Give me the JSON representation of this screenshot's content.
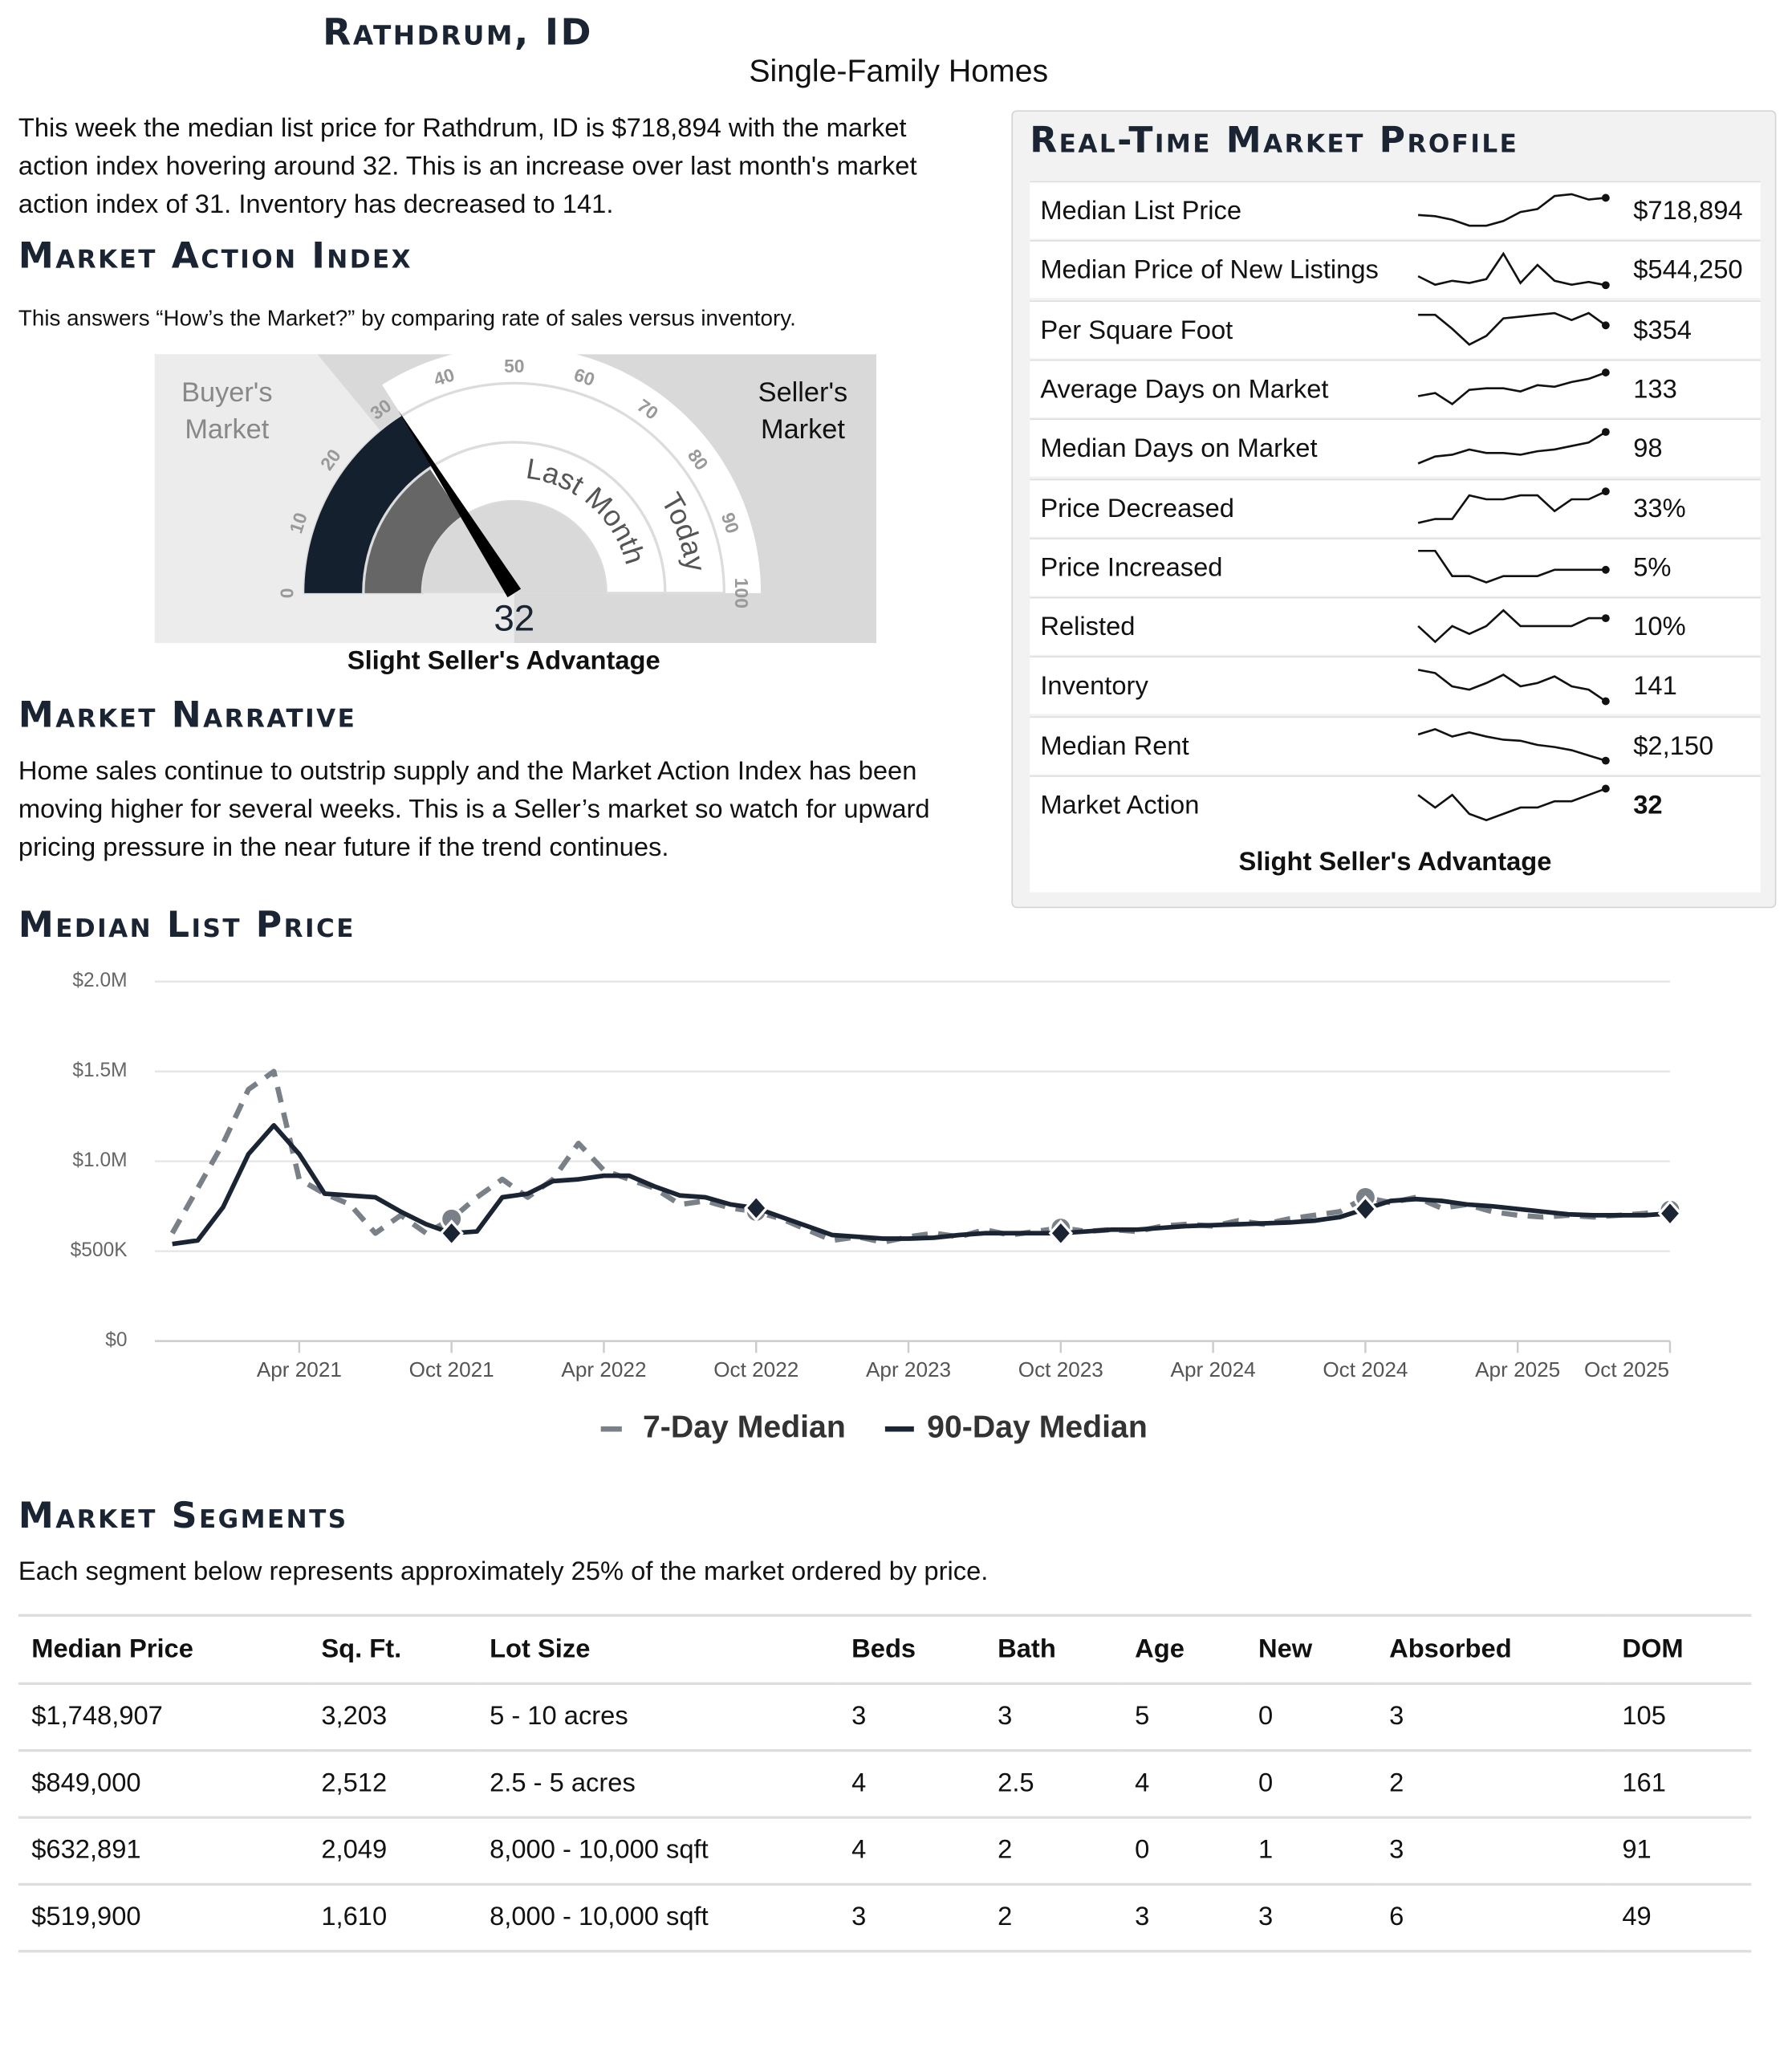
{
  "header": {
    "title": "Rathdrum, ID",
    "subtitle": "Single-Family Homes"
  },
  "intro": "This week the median list price for Rathdrum, ID is $718,894 with the market action index hovering around 32. This is an increase over last month's market action index of 31. Inventory has decreased to 141.",
  "market_action_index": {
    "title": "Market Action Index",
    "description": "This answers “How’s the Market?” by comparing rate of sales versus inventory.",
    "buyers_label": "Buyer's Market",
    "sellers_label": "Seller's Market",
    "today_label": "Today",
    "last_month_label": "Last Month",
    "today_value": 32,
    "last_month_value": 31,
    "gauge_range": [
      0,
      100
    ],
    "gauge_ticks": [
      0,
      10,
      20,
      30,
      40,
      50,
      60,
      70,
      80,
      90,
      100
    ],
    "status": "Slight Seller's Advantage"
  },
  "narrative": {
    "title": "Market Narrative",
    "text": "Home sales continue to outstrip supply and the Market Action Index has been moving higher for several weeks. This is a Seller’s market so watch for upward pricing pressure in the near future if the trend continues."
  },
  "profile": {
    "title": "Real-Time Market Profile",
    "status": "Slight Seller's Advantage",
    "rows": [
      {
        "label": "Median List Price",
        "value": 718894,
        "value_label": "$718,894",
        "trend": [
          690000,
          688000,
          682000,
          672000,
          672000,
          680000,
          695000,
          700000,
          722000,
          725000,
          716000,
          718894
        ]
      },
      {
        "label": "Median Price of New Listings",
        "value": 544250,
        "value_label": "$544,250",
        "trend": [
          560000,
          545000,
          552000,
          548000,
          555000,
          600000,
          548000,
          580000,
          552000,
          545000,
          550000,
          544250
        ]
      },
      {
        "label": "Per Square Foot",
        "value": 354,
        "value_label": "$354",
        "trend": [
          360,
          360,
          352,
          343,
          348,
          358,
          359,
          360,
          361,
          357,
          361,
          354
        ]
      },
      {
        "label": "Average Days on Market",
        "value": 133,
        "trend": [
          118,
          120,
          113,
          122,
          123,
          123,
          121,
          125,
          124,
          127,
          129,
          133
        ]
      },
      {
        "label": "Median Days on Market",
        "value": 98,
        "trend": [
          80,
          84,
          85,
          88,
          86,
          86,
          85,
          87,
          88,
          90,
          92,
          98
        ]
      },
      {
        "label": "Price Decreased",
        "value": 33,
        "value_label": "33%",
        "trend": [
          25,
          26,
          26,
          32,
          31,
          31,
          32,
          32,
          28,
          31,
          31,
          33
        ]
      },
      {
        "label": "Price Increased",
        "value": 5,
        "value_label": "5%",
        "trend": [
          8,
          8,
          4,
          4,
          3,
          4,
          4,
          4,
          5,
          5,
          5,
          5
        ]
      },
      {
        "label": "Relisted",
        "value": 10,
        "value_label": "10%",
        "trend": [
          9,
          7,
          9,
          8,
          9,
          11,
          9,
          9,
          9,
          9,
          10,
          10
        ]
      },
      {
        "label": "Inventory",
        "value": 141,
        "trend": [
          160,
          158,
          150,
          148,
          152,
          157,
          150,
          152,
          156,
          150,
          148,
          141
        ]
      },
      {
        "label": "Median Rent",
        "value": 2150,
        "value_label": "$2,150",
        "trend": [
          2400,
          2450,
          2380,
          2420,
          2380,
          2350,
          2340,
          2300,
          2280,
          2250,
          2200,
          2150
        ]
      },
      {
        "label": "Market Action",
        "value": 32,
        "trend": [
          31,
          29,
          31,
          28,
          27,
          28,
          29,
          29,
          30,
          30,
          31,
          32
        ]
      }
    ]
  },
  "chart_data": {
    "type": "line",
    "title": "Median List Price",
    "x": [
      "2020-11",
      "2020-12",
      "2021-01",
      "2021-02",
      "2021-03",
      "2021-04",
      "2021-05",
      "2021-06",
      "2021-07",
      "2021-08",
      "2021-09",
      "2021-10",
      "2021-11",
      "2021-12",
      "2022-01",
      "2022-02",
      "2022-03",
      "2022-04",
      "2022-05",
      "2022-06",
      "2022-07",
      "2022-08",
      "2022-09",
      "2022-10",
      "2022-11",
      "2022-12",
      "2023-01",
      "2023-02",
      "2023-03",
      "2023-04",
      "2023-05",
      "2023-06",
      "2023-07",
      "2023-08",
      "2023-09",
      "2023-10",
      "2023-11",
      "2023-12",
      "2024-01",
      "2024-02",
      "2024-03",
      "2024-04",
      "2024-05",
      "2024-06",
      "2024-07",
      "2024-08",
      "2024-09",
      "2024-10",
      "2024-11",
      "2024-12",
      "2025-01",
      "2025-02",
      "2025-03",
      "2025-04",
      "2025-05",
      "2025-06",
      "2025-07",
      "2025-08",
      "2025-09",
      "2025-10"
    ],
    "series": [
      {
        "name": "7-Day Median",
        "color": "#7a8088",
        "dashed": true,
        "values": [
          600000,
          850000,
          1100000,
          1400000,
          1500000,
          900000,
          820000,
          760000,
          600000,
          700000,
          600000,
          680000,
          800000,
          900000,
          800000,
          900000,
          1100000,
          950000,
          900000,
          850000,
          760000,
          780000,
          740000,
          720000,
          680000,
          620000,
          560000,
          580000,
          550000,
          580000,
          600000,
          580000,
          620000,
          590000,
          610000,
          630000,
          610000,
          620000,
          610000,
          640000,
          650000,
          640000,
          670000,
          650000,
          680000,
          700000,
          720000,
          800000,
          770000,
          800000,
          740000,
          760000,
          720000,
          700000,
          690000,
          700000,
          690000,
          700000,
          710000,
          730000
        ]
      },
      {
        "name": "90-Day Median",
        "color": "#1b2433",
        "dashed": false,
        "values": [
          540000,
          560000,
          745000,
          1040000,
          1200000,
          1040000,
          820000,
          810000,
          800000,
          720000,
          650000,
          600000,
          610000,
          800000,
          820000,
          890000,
          900000,
          920000,
          920000,
          860000,
          810000,
          800000,
          760000,
          740000,
          690000,
          640000,
          590000,
          580000,
          570000,
          570000,
          575000,
          590000,
          600000,
          600000,
          600000,
          600000,
          610000,
          620000,
          620000,
          630000,
          640000,
          645000,
          650000,
          655000,
          660000,
          670000,
          690000,
          735000,
          780000,
          790000,
          780000,
          760000,
          750000,
          735000,
          720000,
          705000,
          700000,
          700000,
          700000,
          710000
        ]
      }
    ],
    "xlim": [
      "2020-10",
      "2025-10"
    ],
    "xticks": [
      {
        "value": "2021-04",
        "label": "Apr 2021"
      },
      {
        "value": "2021-10",
        "label": "Oct 2021"
      },
      {
        "value": "2022-04",
        "label": "Apr 2022"
      },
      {
        "value": "2022-10",
        "label": "Oct 2022"
      },
      {
        "value": "2023-04",
        "label": "Apr 2023"
      },
      {
        "value": "2023-10",
        "label": "Oct 2023"
      },
      {
        "value": "2024-04",
        "label": "Apr 2024"
      },
      {
        "value": "2024-10",
        "label": "Oct 2024"
      },
      {
        "value": "2025-04",
        "label": "Apr 2025"
      },
      {
        "value": "2025-10",
        "label": "Oct 2025"
      }
    ],
    "ylim": [
      0,
      2000000
    ],
    "yticks": [
      {
        "value": 0,
        "label": "$0"
      },
      {
        "value": 500000,
        "label": "$500K"
      },
      {
        "value": 1000000,
        "label": "$1.0M"
      },
      {
        "value": 1500000,
        "label": "$1.5M"
      },
      {
        "value": 2000000,
        "label": "$2.0M"
      }
    ],
    "grid": true,
    "legend": "bottom"
  },
  "segments": {
    "title": "Market Segments",
    "description": "Each segment below represents approximately 25% of the market ordered by price.",
    "columns": [
      "Median Price",
      "Sq. Ft.",
      "Lot Size",
      "Beds",
      "Bath",
      "Age",
      "New",
      "Absorbed",
      "DOM"
    ],
    "rows": [
      [
        "$1,748,907",
        "3,203",
        "5 - 10 acres",
        "3",
        "3",
        "5",
        "0",
        "3",
        "105"
      ],
      [
        "$849,000",
        "2,512",
        "2.5 - 5 acres",
        "4",
        "2.5",
        "4",
        "0",
        "2",
        "161"
      ],
      [
        "$632,891",
        "2,049",
        "8,000 - 10,000 sqft",
        "4",
        "2",
        "0",
        "1",
        "3",
        "91"
      ],
      [
        "$519,900",
        "1,610",
        "8,000 - 10,000 sqft",
        "3",
        "2",
        "3",
        "3",
        "6",
        "49"
      ]
    ]
  }
}
